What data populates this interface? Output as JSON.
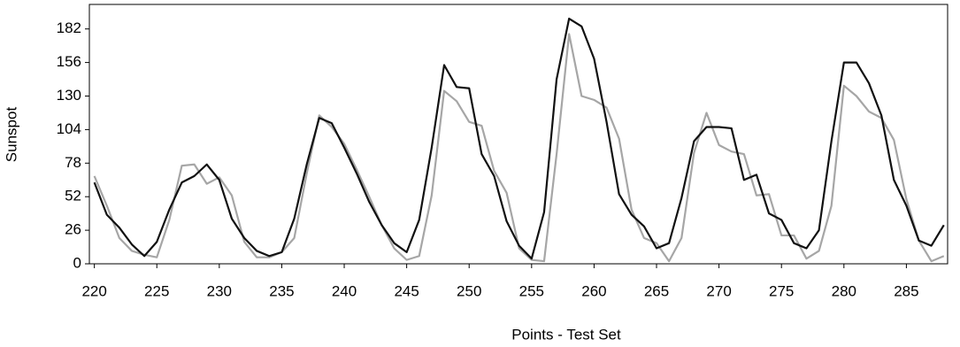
{
  "chart_data": {
    "type": "line",
    "xlabel": "Points - Test Set",
    "ylabel": "Sunspot",
    "x": [
      220,
      221,
      222,
      223,
      224,
      225,
      226,
      227,
      228,
      229,
      230,
      231,
      232,
      233,
      234,
      235,
      236,
      237,
      238,
      239,
      240,
      241,
      242,
      243,
      244,
      245,
      246,
      247,
      248,
      249,
      250,
      251,
      252,
      253,
      254,
      255,
      256,
      257,
      258,
      259,
      260,
      261,
      262,
      263,
      264,
      265,
      266,
      267,
      268,
      269,
      270,
      271,
      272,
      273,
      274,
      275,
      276,
      277,
      278,
      279,
      280,
      281,
      282,
      283,
      284,
      285,
      286,
      287,
      288
    ],
    "series": [
      {
        "color": "#111111",
        "values": [
          63,
          38,
          28,
          15,
          6,
          17,
          42,
          63,
          68,
          77,
          65,
          35,
          20,
          10,
          6,
          9,
          35,
          77,
          113,
          109,
          90,
          70,
          48,
          30,
          16,
          9,
          34,
          90,
          154,
          137,
          136,
          85,
          68,
          33,
          14,
          4,
          40,
          143,
          190,
          184,
          159,
          110,
          54,
          38,
          29,
          12,
          16,
          51,
          95,
          106,
          106,
          105,
          65,
          69,
          39,
          34,
          16,
          12,
          26,
          95,
          156,
          156,
          140,
          115,
          65,
          45,
          18,
          14,
          30
        ]
      },
      {
        "color": "#a6a6a6",
        "values": [
          68,
          45,
          20,
          10,
          7,
          5,
          34,
          76,
          77,
          62,
          67,
          53,
          17,
          5,
          5,
          9,
          20,
          70,
          115,
          106,
          93,
          73,
          52,
          30,
          12,
          3,
          6,
          53,
          134,
          126,
          110,
          107,
          72,
          55,
          12,
          3,
          2,
          85,
          178,
          130,
          127,
          121,
          97,
          42,
          20,
          16,
          2,
          20,
          86,
          117,
          92,
          87,
          85,
          53,
          54,
          22,
          22,
          4,
          10,
          45,
          138,
          130,
          118,
          113,
          96,
          50,
          18,
          2,
          6
        ]
      }
    ],
    "xlim": [
      219.6,
      288.3
    ],
    "ylim": [
      0,
      201
    ],
    "xticks": [
      220,
      225,
      230,
      235,
      240,
      245,
      250,
      255,
      260,
      265,
      270,
      275,
      280,
      285
    ],
    "yticks": [
      0,
      26,
      52,
      78,
      104,
      130,
      156,
      182
    ]
  }
}
